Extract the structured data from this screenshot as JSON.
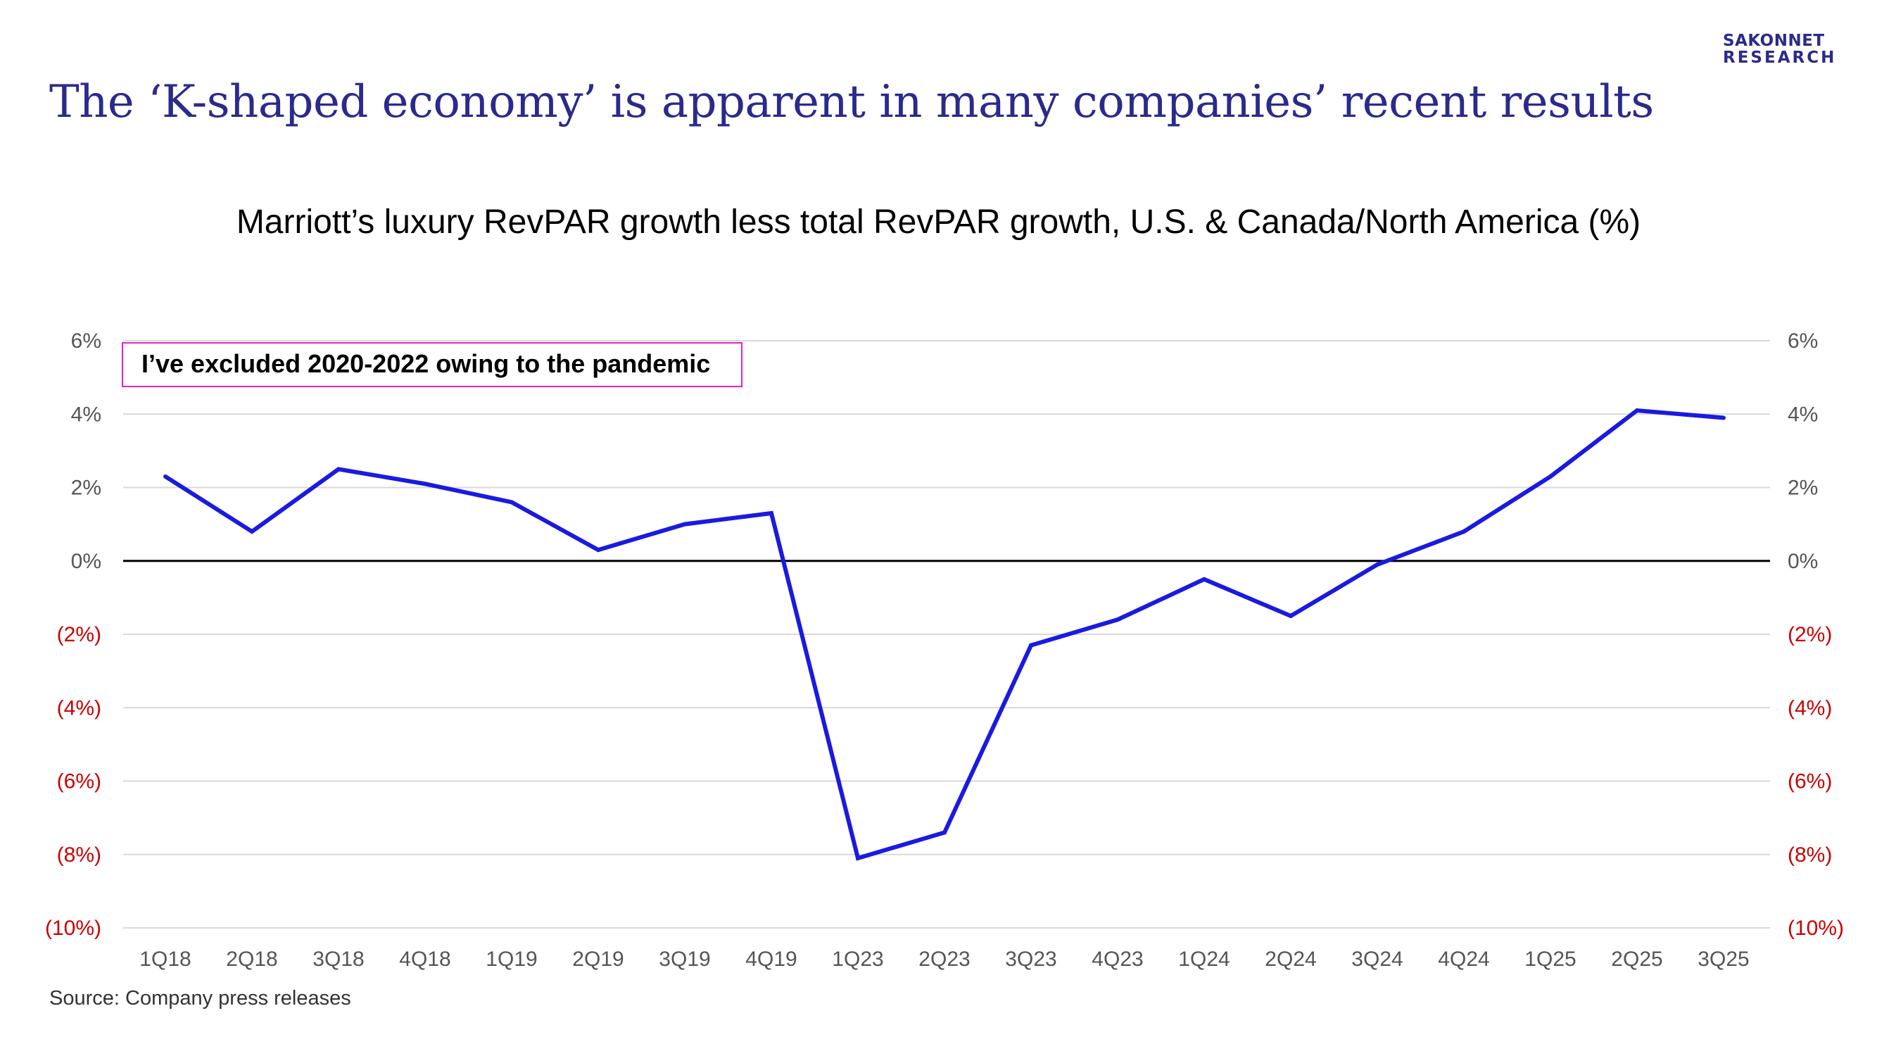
{
  "slide": {
    "title": "The ‘K-shaped economy’ is apparent in many companies’ recent results",
    "logo_line1": "SAKONNET",
    "logo_line2": "RESEARCH",
    "source": "Source: Company press releases"
  },
  "annotation": "I’ve excluded 2020-2022 owing to the pandemic",
  "colors": {
    "line": "#1a1ae0",
    "title": "#2b2a8c",
    "negative_tick": "#cc0000",
    "positive_tick": "#555555",
    "grid": "#d9d9d9",
    "zero_line": "#000000",
    "annotation_border": "#e020d0"
  },
  "chart_data": {
    "type": "line",
    "title": "Marriott’s luxury RevPAR growth less total RevPAR growth, U.S. & Canada/North America (%)",
    "categories": [
      "1Q18",
      "2Q18",
      "3Q18",
      "4Q18",
      "1Q19",
      "2Q19",
      "3Q19",
      "4Q19",
      "1Q23",
      "2Q23",
      "3Q23",
      "4Q23",
      "1Q24",
      "2Q24",
      "3Q24",
      "4Q24",
      "1Q25",
      "2Q25",
      "3Q25"
    ],
    "series": [
      {
        "values": [
          2.3,
          0.8,
          2.5,
          2.1,
          1.6,
          0.3,
          1.0,
          1.3,
          -8.1,
          -7.4,
          -2.3,
          -1.6,
          -0.5,
          -1.5,
          -0.1,
          0.8,
          2.3,
          4.1,
          3.9
        ]
      }
    ],
    "ylim": [
      -10,
      6
    ],
    "y_ticks": [
      6,
      4,
      2,
      0,
      -2,
      -4,
      -6,
      -8,
      -10
    ],
    "y_tick_labels": [
      "6%",
      "4%",
      "2%",
      "0%",
      "(2%)",
      "(4%)",
      "(6%)",
      "(8%)",
      "(10%)"
    ],
    "secondary_axis": "right (mirrors left)",
    "grid": true,
    "legend": "none"
  }
}
